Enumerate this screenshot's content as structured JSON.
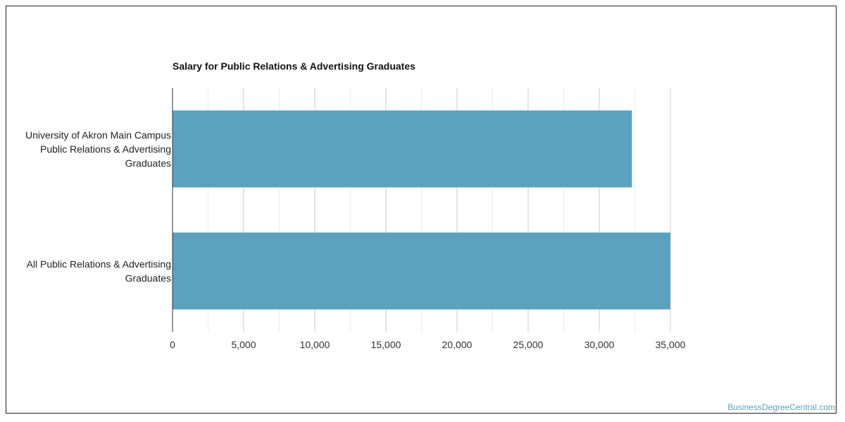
{
  "chart_data": {
    "type": "bar",
    "orientation": "horizontal",
    "title": "Salary for Public Relations & Advertising Graduates",
    "categories": [
      [
        "University of Akron Main Campus",
        "Public Relations & Advertising",
        "Graduates"
      ],
      [
        "All Public Relations & Advertising",
        "Graduates"
      ]
    ],
    "values": [
      32300,
      35000
    ],
    "xlim": [
      0,
      35000
    ],
    "xticks": [
      "0",
      "5,000",
      "10,000",
      "15,000",
      "20,000",
      "25,000",
      "30,000",
      "35,000"
    ],
    "grid": true,
    "bar_color": "#5ca2bf"
  },
  "watermark": "BusinessDegreeCentral.com"
}
